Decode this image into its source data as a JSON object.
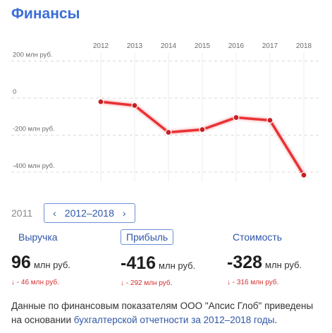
{
  "header": {
    "title": "Финансы"
  },
  "chart_data": {
    "type": "line",
    "x": [
      "2012",
      "2013",
      "2014",
      "2015",
      "2016",
      "2017",
      "2018"
    ],
    "series": [
      {
        "values": [
          -20,
          -40,
          -185,
          -170,
          -105,
          -120,
          -416
        ],
        "color": "#e8262a"
      }
    ],
    "y_tick_labels": [
      "200 млн руб.",
      "0",
      "-200 млн руб.",
      "-400 млн руб."
    ],
    "y_ticks": [
      200,
      0,
      -200,
      -400
    ],
    "ylim": [
      -430,
      240
    ],
    "grid": true
  },
  "period": {
    "prev_year": "2011",
    "range": "2012–2018",
    "prev_icon": "chevron-left-icon",
    "next_icon": "chevron-right-icon"
  },
  "metrics": [
    {
      "label": "Выручка",
      "value": "96",
      "unit": "млн руб.",
      "delta": "↓ - 46 млн руб."
    },
    {
      "label": "Прибыль",
      "value": "-416",
      "unit": "млн руб.",
      "delta": "↓ - 292 млн руб."
    },
    {
      "label": "Стоимость",
      "value": "-328",
      "unit": "млн руб.",
      "delta": "↓ - 316 млн руб."
    }
  ],
  "footer": {
    "text_before": "Данные по финансовым показателям ООО \"Апсис Глоб\" приведены на основании ",
    "link": "бухгалтерской отчетности за 2012–2018 годы",
    "text_after": "."
  },
  "colors": {
    "accent": "#3b6fd6",
    "line": "#e8262a",
    "negative": "#d63030"
  }
}
